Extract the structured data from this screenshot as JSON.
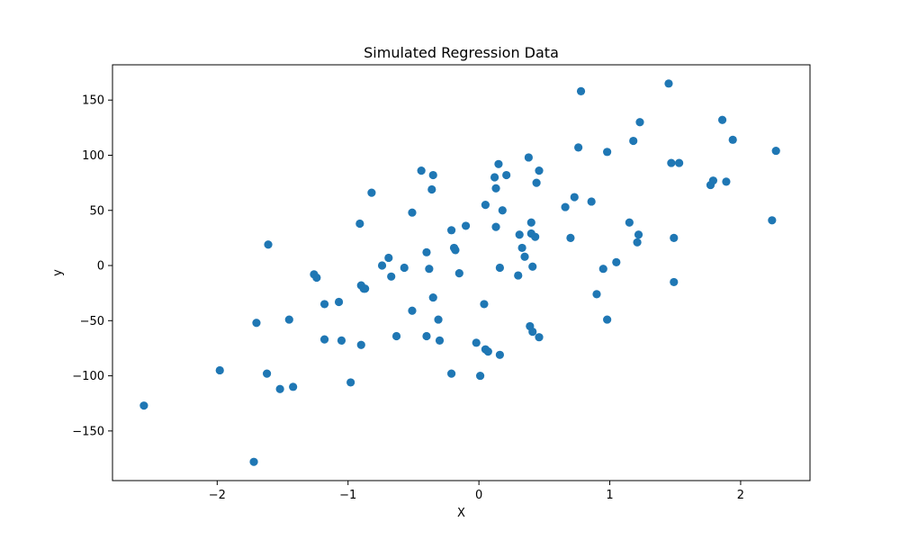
{
  "chart_data": {
    "type": "scatter",
    "title": "Simulated Regression Data",
    "xlabel": "X",
    "ylabel": "y",
    "xlim": [
      -2.8,
      2.53
    ],
    "ylim": [
      -195,
      182
    ],
    "x_ticks": [
      -2,
      -1,
      0,
      1,
      2
    ],
    "x_tick_labels": [
      "−2",
      "−1",
      "0",
      "1",
      "2"
    ],
    "y_ticks": [
      -150,
      -100,
      -50,
      0,
      50,
      100,
      150
    ],
    "y_tick_labels": [
      "−150",
      "−100",
      "−50",
      "0",
      "50",
      "100",
      "150"
    ],
    "grid": false,
    "legend": "none",
    "marker_color": "#1f77b4",
    "series": [
      {
        "points": [
          [
            -2.56,
            -127
          ],
          [
            -1.98,
            -95
          ],
          [
            -1.72,
            -178
          ],
          [
            -1.7,
            -52
          ],
          [
            -1.62,
            -98
          ],
          [
            -1.61,
            19
          ],
          [
            -1.52,
            -112
          ],
          [
            -1.45,
            -49
          ],
          [
            -1.42,
            -110
          ],
          [
            -1.26,
            -8
          ],
          [
            -1.24,
            -11
          ],
          [
            -1.18,
            -35
          ],
          [
            -1.18,
            -67
          ],
          [
            -1.07,
            -33
          ],
          [
            -1.05,
            -68
          ],
          [
            -0.98,
            -106
          ],
          [
            -0.91,
            38
          ],
          [
            -0.9,
            -72
          ],
          [
            -0.9,
            -18
          ],
          [
            -0.88,
            -21
          ],
          [
            -0.87,
            -21
          ],
          [
            -0.82,
            66
          ],
          [
            -0.74,
            0
          ],
          [
            -0.69,
            7
          ],
          [
            -0.67,
            -10
          ],
          [
            -0.63,
            -64
          ],
          [
            -0.57,
            -2
          ],
          [
            -0.51,
            48
          ],
          [
            -0.51,
            -41
          ],
          [
            -0.44,
            86
          ],
          [
            -0.4,
            12
          ],
          [
            -0.4,
            -64
          ],
          [
            -0.38,
            -3
          ],
          [
            -0.36,
            69
          ],
          [
            -0.35,
            82
          ],
          [
            -0.35,
            -29
          ],
          [
            -0.31,
            -49
          ],
          [
            -0.3,
            -68
          ],
          [
            -0.21,
            32
          ],
          [
            -0.21,
            -98
          ],
          [
            -0.19,
            16
          ],
          [
            -0.18,
            14
          ],
          [
            -0.15,
            -7
          ],
          [
            -0.1,
            36
          ],
          [
            -0.02,
            -70
          ],
          [
            0.01,
            -100
          ],
          [
            0.04,
            -35
          ],
          [
            0.05,
            55
          ],
          [
            0.05,
            -76
          ],
          [
            0.07,
            -78
          ],
          [
            0.12,
            80
          ],
          [
            0.13,
            70
          ],
          [
            0.13,
            35
          ],
          [
            0.15,
            92
          ],
          [
            0.16,
            -2
          ],
          [
            0.16,
            -81
          ],
          [
            0.18,
            50
          ],
          [
            0.21,
            82
          ],
          [
            0.3,
            -9
          ],
          [
            0.31,
            28
          ],
          [
            0.33,
            16
          ],
          [
            0.35,
            8
          ],
          [
            0.38,
            98
          ],
          [
            0.39,
            -55
          ],
          [
            0.4,
            39
          ],
          [
            0.4,
            29
          ],
          [
            0.41,
            -60
          ],
          [
            0.41,
            -1
          ],
          [
            0.43,
            26
          ],
          [
            0.44,
            75
          ],
          [
            0.46,
            -65
          ],
          [
            0.46,
            86
          ],
          [
            0.66,
            53
          ],
          [
            0.7,
            25
          ],
          [
            0.73,
            62
          ],
          [
            0.76,
            107
          ],
          [
            0.78,
            158
          ],
          [
            0.86,
            58
          ],
          [
            0.9,
            -26
          ],
          [
            0.95,
            -3
          ],
          [
            0.98,
            103
          ],
          [
            0.98,
            -49
          ],
          [
            1.05,
            3
          ],
          [
            1.15,
            39
          ],
          [
            1.18,
            113
          ],
          [
            1.21,
            21
          ],
          [
            1.22,
            28
          ],
          [
            1.23,
            130
          ],
          [
            1.45,
            165
          ],
          [
            1.47,
            93
          ],
          [
            1.49,
            25
          ],
          [
            1.49,
            -15
          ],
          [
            1.53,
            93
          ],
          [
            1.77,
            73
          ],
          [
            1.79,
            77
          ],
          [
            1.86,
            132
          ],
          [
            1.89,
            76
          ],
          [
            1.94,
            114
          ],
          [
            2.24,
            41
          ],
          [
            2.27,
            104
          ]
        ]
      }
    ]
  }
}
